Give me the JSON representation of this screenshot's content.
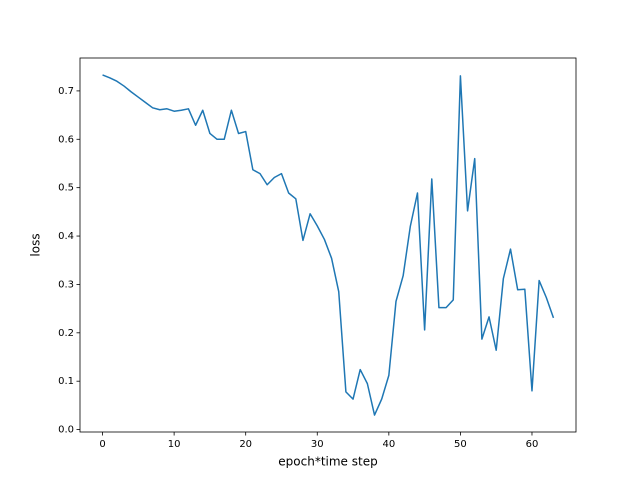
{
  "chart_data": {
    "type": "line",
    "x_label": "epoch*time step",
    "y_label": "loss",
    "x": [
      0,
      1,
      2,
      3,
      4,
      5,
      6,
      7,
      8,
      9,
      10,
      11,
      12,
      13,
      14,
      15,
      16,
      17,
      18,
      19,
      20,
      21,
      22,
      23,
      24,
      25,
      26,
      27,
      28,
      29,
      30,
      31,
      32,
      33,
      34,
      35,
      36,
      37,
      38,
      39,
      40,
      41,
      42,
      43,
      44,
      45,
      46,
      47,
      48,
      49,
      50,
      51,
      52,
      53,
      54,
      55,
      56,
      57,
      58,
      59,
      60,
      61,
      62,
      63
    ],
    "series": [
      {
        "color": "#1f77b4",
        "values": [
          0.733,
          0.727,
          0.72,
          0.71,
          0.698,
          0.687,
          0.676,
          0.665,
          0.661,
          0.663,
          0.658,
          0.66,
          0.663,
          0.629,
          0.66,
          0.612,
          0.6,
          0.6,
          0.66,
          0.612,
          0.616,
          0.537,
          0.529,
          0.506,
          0.521,
          0.529,
          0.489,
          0.477,
          0.391,
          0.446,
          0.421,
          0.393,
          0.354,
          0.285,
          0.078,
          0.063,
          0.124,
          0.095,
          0.03,
          0.063,
          0.112,
          0.265,
          0.318,
          0.42,
          0.489,
          0.206,
          0.518,
          0.252,
          0.252,
          0.268,
          0.731,
          0.452,
          0.56,
          0.187,
          0.233,
          0.164,
          0.312,
          0.373,
          0.289,
          0.29,
          0.08,
          0.308,
          0.273,
          0.231
        ]
      }
    ],
    "xlim": [
      -3.15,
      66.15
    ],
    "xticks": [
      0,
      10,
      20,
      30,
      40,
      50,
      60
    ],
    "ylim": [
      -0.005,
      0.768
    ],
    "yticks": [
      {
        "value": 0,
        "label": "0.0"
      },
      0.1,
      0.2,
      0.3,
      0.4,
      0.5,
      0.6,
      0.7
    ]
  }
}
